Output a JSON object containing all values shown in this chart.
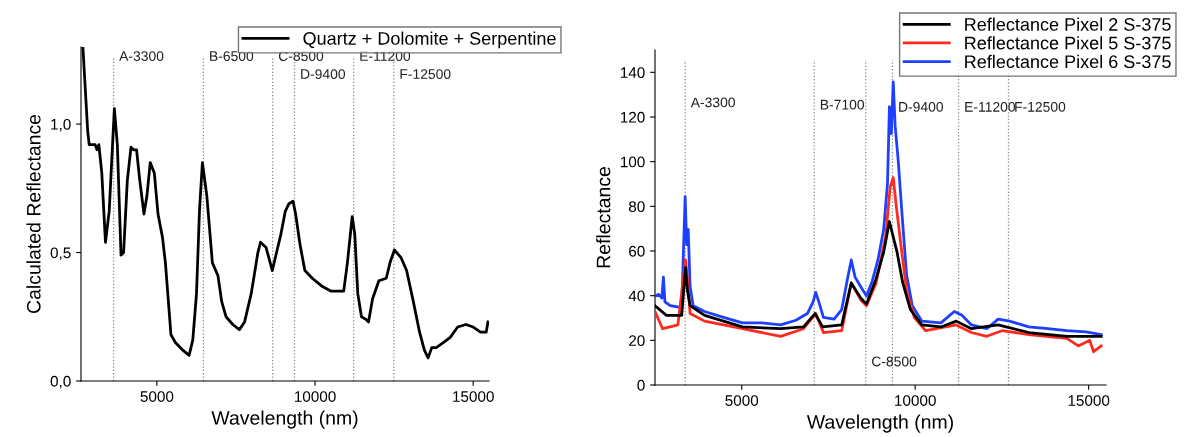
{
  "chart_data": [
    {
      "type": "line",
      "xlabel": "Wavelength (nm)",
      "ylabel": "Calculated Reflectance",
      "xlim": [
        2600,
        15500
      ],
      "xticks": [
        5000,
        10000,
        15000
      ],
      "ylim": [
        0,
        1.3
      ],
      "yticks": [
        {
          "value": 0,
          "label": "0,0"
        },
        {
          "value": 0.5,
          "label": "0,5"
        },
        {
          "value": 1.0,
          "label": "1,0"
        }
      ],
      "grid": false,
      "legend": "top right",
      "line_style": "solid",
      "marker": "none",
      "series": [
        {
          "name": "Quartz + Dolomite + Serpentine",
          "color": "#000000",
          "x": [
            2660,
            2813,
            2860,
            2977,
            3047,
            3105,
            3164,
            3257,
            3374,
            3491,
            3655,
            3749,
            3865,
            3947,
            4064,
            4181,
            4263,
            4357,
            4450,
            4591,
            4684,
            4789,
            4918,
            5035,
            5175,
            5269,
            5363,
            5444,
            5585,
            5819,
            6018,
            6135,
            6252,
            6345,
            6439,
            6579,
            6754,
            6930,
            7047,
            7187,
            7398,
            7608,
            7772,
            7982,
            8193,
            8275,
            8450,
            8649,
            8801,
            8918,
            9058,
            9175,
            9304,
            9386,
            9526,
            9678,
            9912,
            10205,
            10497,
            10906,
            11023,
            11175,
            11257,
            11351,
            11468,
            11608,
            11690,
            11819,
            12018,
            12252,
            12369,
            12509,
            12720,
            12895,
            13106,
            13305,
            13457,
            13574,
            13691,
            13831,
            14065,
            14275,
            14509,
            14767,
            15000,
            15234,
            15410,
            15468
          ],
          "values": [
            1.3,
            0.97,
            0.92,
            0.92,
            0.92,
            0.9,
            0.92,
            0.81,
            0.54,
            0.66,
            1.06,
            0.92,
            0.49,
            0.5,
            0.78,
            0.91,
            0.9,
            0.9,
            0.79,
            0.65,
            0.72,
            0.85,
            0.81,
            0.65,
            0.56,
            0.46,
            0.31,
            0.18,
            0.15,
            0.12,
            0.1,
            0.16,
            0.34,
            0.66,
            0.85,
            0.72,
            0.46,
            0.41,
            0.31,
            0.25,
            0.22,
            0.2,
            0.23,
            0.34,
            0.5,
            0.54,
            0.52,
            0.43,
            0.51,
            0.57,
            0.66,
            0.69,
            0.7,
            0.65,
            0.53,
            0.43,
            0.4,
            0.37,
            0.35,
            0.35,
            0.46,
            0.64,
            0.57,
            0.34,
            0.25,
            0.24,
            0.23,
            0.32,
            0.39,
            0.4,
            0.46,
            0.51,
            0.48,
            0.43,
            0.31,
            0.19,
            0.12,
            0.09,
            0.13,
            0.13,
            0.15,
            0.17,
            0.21,
            0.22,
            0.21,
            0.19,
            0.19,
            0.23
          ]
        }
      ],
      "ref_lines": [
        {
          "axis": "x",
          "value": 3630,
          "color": "#888888",
          "line_style": "dotted"
        },
        {
          "axis": "x",
          "value": 6470,
          "color": "#888888",
          "line_style": "dotted"
        },
        {
          "axis": "x",
          "value": 8660,
          "color": "#888888",
          "line_style": "dotted"
        },
        {
          "axis": "x",
          "value": 9350,
          "color": "#888888",
          "line_style": "dotted"
        },
        {
          "axis": "x",
          "value": 11220,
          "color": "#888888",
          "line_style": "dotted"
        },
        {
          "axis": "x",
          "value": 12490,
          "color": "#888888",
          "line_style": "dotted"
        }
      ],
      "annotations": [
        {
          "text": "A-3300",
          "x": 3630,
          "y": 1.26
        },
        {
          "text": "B-6500",
          "x": 6470,
          "y": 1.26
        },
        {
          "text": "C-8500",
          "x": 8660,
          "y": 1.26
        },
        {
          "text": "D-9400",
          "x": 9350,
          "y": 1.19
        },
        {
          "text": "E-11200",
          "x": 11220,
          "y": 1.26
        },
        {
          "text": "F-12500",
          "x": 12490,
          "y": 1.19
        }
      ]
    },
    {
      "type": "line",
      "xlabel": "Wavelength (nm)",
      "ylabel": "Reflectance",
      "xlim": [
        2500,
        15500
      ],
      "xticks": [
        5000,
        10000,
        15000
      ],
      "ylim": [
        0,
        150
      ],
      "yticks": [
        0,
        20,
        40,
        60,
        80,
        100,
        120,
        140
      ],
      "grid": false,
      "legend": "top right",
      "line_style": "solid",
      "marker": "none",
      "series": [
        {
          "name": "Reflectance Pixel 2 S-375",
          "color": "#000000",
          "x": [
            2500,
            2830,
            3270,
            3380,
            3435,
            3512,
            3930,
            5022,
            6122,
            6782,
            7112,
            7332,
            7882,
            8157,
            8432,
            8597,
            8872,
            9092,
            9257,
            9367,
            9477,
            9642,
            9862,
            10192,
            10742,
            11182,
            11622,
            12392,
            13272,
            14372,
            15362
          ],
          "values": [
            35.5,
            31.2,
            31.2,
            52.6,
            42.3,
            35.5,
            31.2,
            26,
            25.2,
            26,
            32,
            26,
            26.9,
            45.7,
            38.9,
            36.3,
            47.5,
            59.5,
            73.2,
            66.3,
            59.5,
            45.7,
            33.8,
            26.9,
            26,
            28.6,
            25.2,
            26.9,
            23.5,
            21.8,
            21.8
          ]
        },
        {
          "name": "Reflectance Pixel 5 S-375",
          "color": "#ff2a1f",
          "x": [
            2500,
            2720,
            3160,
            3380,
            3435,
            3512,
            3930,
            5022,
            6122,
            6782,
            7134,
            7354,
            7882,
            8157,
            8432,
            8597,
            8872,
            9147,
            9279,
            9367,
            9455,
            9587,
            9752,
            9972,
            10302,
            11182,
            11622,
            12062,
            12502,
            13272,
            14372,
            14702,
            15032,
            15142,
            15362
          ],
          "values": [
            32.9,
            25.2,
            26.9,
            56,
            47.5,
            32,
            28.6,
            25.2,
            21.8,
            25.2,
            32,
            23.5,
            24.3,
            45.7,
            38.1,
            35.5,
            45.7,
            66.3,
            88.6,
            92.9,
            80,
            62.9,
            42.3,
            30.3,
            24.3,
            26.9,
            23.5,
            21.8,
            24.3,
            22.6,
            20.9,
            17.5,
            20,
            14.9,
            17.5
          ]
        },
        {
          "name": "Reflectance Pixel 6 S-375",
          "color": "#1f3fff",
          "x": [
            2500,
            2610,
            2698,
            2742,
            2786,
            2940,
            3270,
            3369,
            3413,
            3457,
            3512,
            3600,
            3930,
            4472,
            5022,
            5572,
            6122,
            6562,
            6892,
            7057,
            7134,
            7222,
            7354,
            7662,
            7882,
            8047,
            8157,
            8267,
            8432,
            8597,
            8762,
            8927,
            9092,
            9202,
            9257,
            9312,
            9367,
            9422,
            9510,
            9620,
            9752,
            9917,
            10192,
            10742,
            11127,
            11347,
            11622,
            12062,
            12392,
            12722,
            13272,
            13822,
            14372,
            14922,
            15362
          ],
          "values": [
            39.8,
            40.6,
            38.9,
            48.3,
            37.2,
            35.5,
            34.6,
            84.3,
            62.9,
            69.7,
            44,
            35.5,
            32.9,
            30.3,
            27.8,
            27.8,
            26.9,
            29,
            32,
            37.2,
            41.5,
            37.2,
            30.3,
            29.5,
            33.8,
            47.5,
            56,
            48.3,
            44,
            39.8,
            46.6,
            56,
            69.7,
            90.3,
            124.6,
            112.6,
            135.7,
            116,
            100.6,
            76.6,
            49.2,
            35.5,
            28.6,
            27.8,
            32.9,
            31.2,
            26.9,
            25.2,
            29.5,
            28.6,
            26,
            25.2,
            24.3,
            23.8,
            22.6
          ]
        }
      ],
      "ref_lines": [
        {
          "axis": "x",
          "value": 3370,
          "color": "#888888",
          "line_style": "dotted"
        },
        {
          "axis": "x",
          "value": 7090,
          "color": "#888888",
          "line_style": "dotted"
        },
        {
          "axis": "x",
          "value": 8575,
          "color": "#888888",
          "line_style": "dotted"
        },
        {
          "axis": "x",
          "value": 9345,
          "color": "#888888",
          "line_style": "dotted"
        },
        {
          "axis": "x",
          "value": 11250,
          "color": "#888888",
          "line_style": "dotted"
        },
        {
          "axis": "x",
          "value": 12690,
          "color": "#888888",
          "line_style": "dotted"
        }
      ],
      "annotations": [
        {
          "text": "A-3300",
          "x": 3370,
          "y": 126
        },
        {
          "text": "B-7100",
          "x": 7090,
          "y": 125
        },
        {
          "text": "C-8500",
          "x": 8575,
          "y": 10
        },
        {
          "text": "D-9400",
          "x": 9345,
          "y": 124
        },
        {
          "text": "E-11200",
          "x": 11250,
          "y": 124
        },
        {
          "text": "F-12500",
          "x": 12690,
          "y": 124
        }
      ]
    }
  ]
}
